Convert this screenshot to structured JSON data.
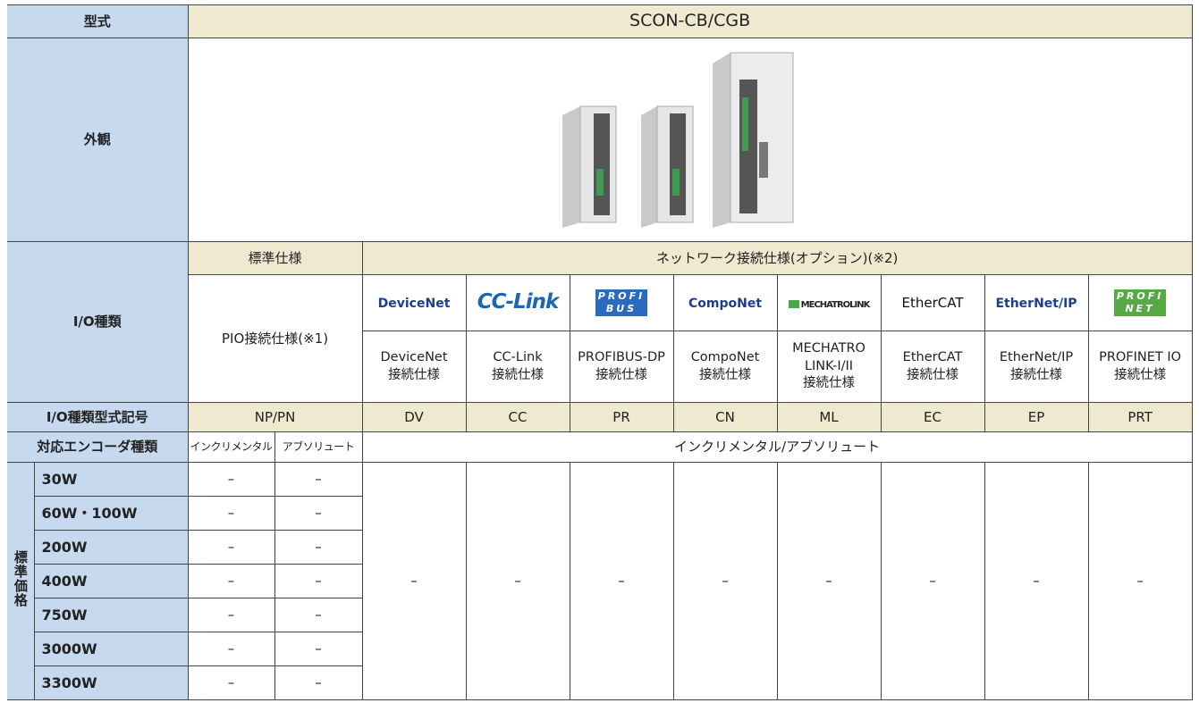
{
  "table": {
    "model_label": "型式",
    "model": "SCON-CB/CGB",
    "appearance_label": "外観",
    "io_type_label": "I/O種類",
    "standard_spec": "標準仕様",
    "network_spec": "ネットワーク接続仕様(オプション)(※2)",
    "pio_spec": "PIO接続仕様(※1)",
    "networks": [
      {
        "logo": "DeviceNet",
        "name": "DeviceNet\n接続仕様",
        "code": "DV"
      },
      {
        "logo": "CC-Link",
        "name": "CC-Link\n接続仕様",
        "code": "CC"
      },
      {
        "logo": "PROFI\nBUS",
        "name": "PROFIBUS-DP\n接続仕様",
        "code": "PR"
      },
      {
        "logo": "CompoNet",
        "name": "CompoNet\n接続仕様",
        "code": "CN"
      },
      {
        "logo": "MECHATROLINK",
        "name": "MECHATRO\nLINK-I/II\n接続仕様",
        "code": "ML"
      },
      {
        "logo": "EtherCAT",
        "name": "EtherCAT\n接続仕様",
        "code": "EC"
      },
      {
        "logo": "EtherNet/IP",
        "name": "EtherNet/IP\n接続仕様",
        "code": "EP"
      },
      {
        "logo": "PROFI\nNET",
        "name": "PROFINET IO\n接続仕様",
        "code": "PRT"
      }
    ],
    "io_code_label": "I/O種類型式記号",
    "pio_code": "NP/PN",
    "encoder_label": "対応エンコーダ種類",
    "encoder_incremental": "インクリメンタル",
    "encoder_absolute": "アブソリュート",
    "encoder_network": "インクリメンタル/アブソリュート",
    "price_label": "標準価格",
    "price_rows": [
      {
        "wattage": "30W",
        "incremental": "–",
        "absolute": "–"
      },
      {
        "wattage": "60W・100W",
        "incremental": "–",
        "absolute": "–"
      },
      {
        "wattage": "200W",
        "incremental": "–",
        "absolute": "–"
      },
      {
        "wattage": "400W",
        "incremental": "–",
        "absolute": "–"
      },
      {
        "wattage": "750W",
        "incremental": "–",
        "absolute": "–"
      },
      {
        "wattage": "3000W",
        "incremental": "–",
        "absolute": "–"
      },
      {
        "wattage": "3300W",
        "incremental": "–",
        "absolute": "–"
      }
    ],
    "network_prices": [
      "–",
      "–",
      "–",
      "–",
      "–",
      "–",
      "–",
      "–"
    ]
  }
}
